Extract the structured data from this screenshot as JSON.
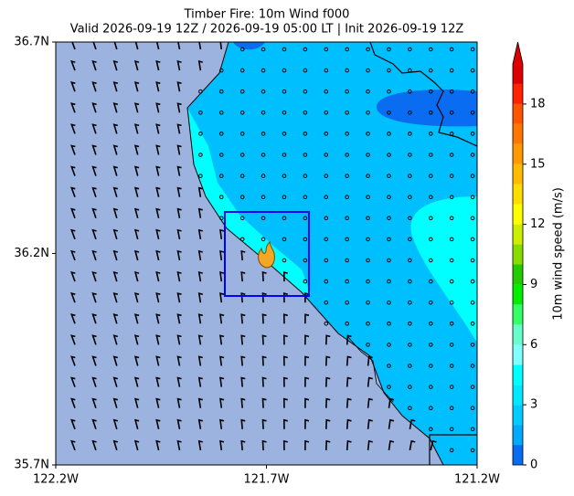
{
  "map": {
    "title": "Timber Fire: 10m Wind f000",
    "subtitle": "Valid 2026-09-19 12Z / 2026-09-19 05:00 LT | Init 2026-09-19 12Z",
    "lat_range": [
      35.7,
      36.7
    ],
    "lon_range": [
      -122.2,
      -121.2
    ],
    "lat_ticks": [
      {
        "value": 36.7,
        "label": "36.7N"
      },
      {
        "value": 36.2,
        "label": "36.2N"
      },
      {
        "value": 35.7,
        "label": "35.7N"
      }
    ],
    "lon_ticks": [
      {
        "value": -122.2,
        "label": "122.2W"
      },
      {
        "value": -121.7,
        "label": "121.7W"
      },
      {
        "value": -121.2,
        "label": "121.2W"
      }
    ],
    "colorbar": {
      "label": "10m wind speed (m/s)",
      "range": [
        0,
        20
      ],
      "ticks": [
        0,
        3,
        6,
        9,
        12,
        15,
        18
      ],
      "colors": [
        "#0a6cf0",
        "#00aaff",
        "#00ccff",
        "#00e8ff",
        "#00ffff",
        "#7fffff",
        "#66ffcc",
        "#33ff66",
        "#00ee00",
        "#22cc00",
        "#88dd00",
        "#ccee00",
        "#ffff00",
        "#ffdd00",
        "#ffbb00",
        "#ff9900",
        "#ff7700",
        "#ff5500",
        "#ff2200",
        "#dd0000"
      ]
    }
  }
}
